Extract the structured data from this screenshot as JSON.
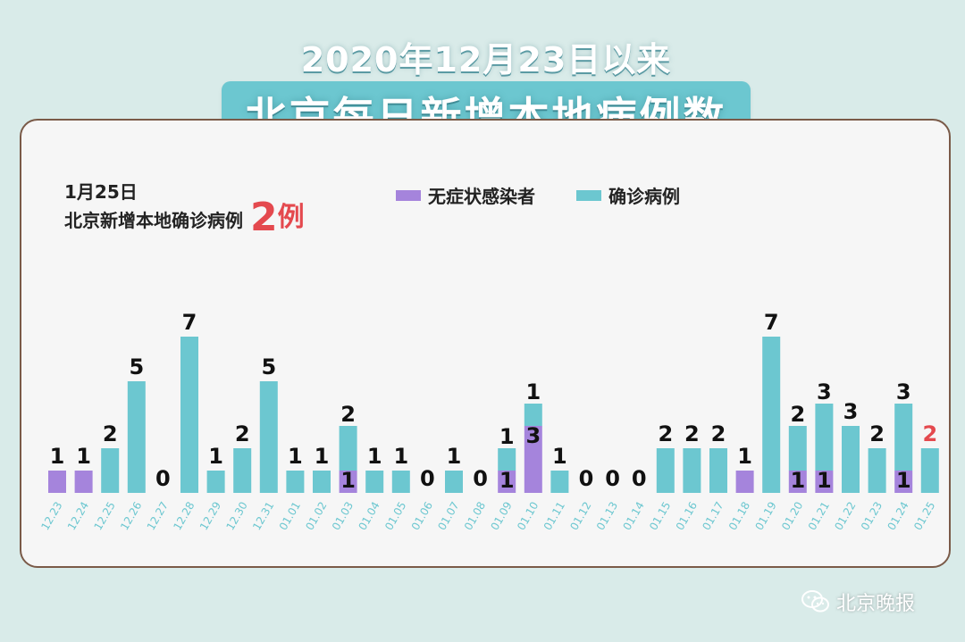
{
  "title": {
    "line1": "2020年12月23日以来",
    "line2": "北京每日新增本地病例数"
  },
  "summary": {
    "date": "1月25日",
    "text": "北京新增本地确诊病例",
    "count": "2",
    "unit": "例"
  },
  "watermark": "北京晚报",
  "colors": {
    "asymptomatic": "#a584dc",
    "confirmed": "#6cc7d0",
    "highlight": "#e4494e"
  },
  "chart_data": {
    "type": "bar",
    "stacked": true,
    "categories": [
      "12.23",
      "12.24",
      "12.25",
      "12.26",
      "12.27",
      "12.28",
      "12.29",
      "12.30",
      "12.31",
      "01.01",
      "01.02",
      "01.03",
      "01.04",
      "01.05",
      "01.06",
      "01.07",
      "01.08",
      "01.09",
      "01.10",
      "01.11",
      "01.12",
      "01.13",
      "01.14",
      "01.15",
      "01.16",
      "01.17",
      "01.18",
      "01.19",
      "01.20",
      "01.21",
      "01.22",
      "01.23",
      "01.24",
      "01.25"
    ],
    "series": [
      {
        "name": "无症状感染者",
        "color": "#a584dc",
        "values": [
          1,
          1,
          0,
          0,
          0,
          0,
          0,
          0,
          0,
          0,
          0,
          1,
          0,
          0,
          0,
          0,
          0,
          1,
          3,
          0,
          0,
          0,
          0,
          0,
          0,
          0,
          1,
          0,
          1,
          1,
          0,
          0,
          1,
          0
        ]
      },
      {
        "name": "确诊病例",
        "color": "#6cc7d0",
        "values": [
          0,
          0,
          2,
          5,
          0,
          7,
          1,
          2,
          5,
          1,
          1,
          2,
          1,
          1,
          0,
          1,
          0,
          1,
          1,
          1,
          0,
          0,
          0,
          2,
          2,
          2,
          0,
          7,
          2,
          3,
          3,
          2,
          3,
          2
        ]
      }
    ],
    "legend": "top",
    "grid": false,
    "ylim": [
      0,
      8
    ],
    "highlight_last": true
  }
}
